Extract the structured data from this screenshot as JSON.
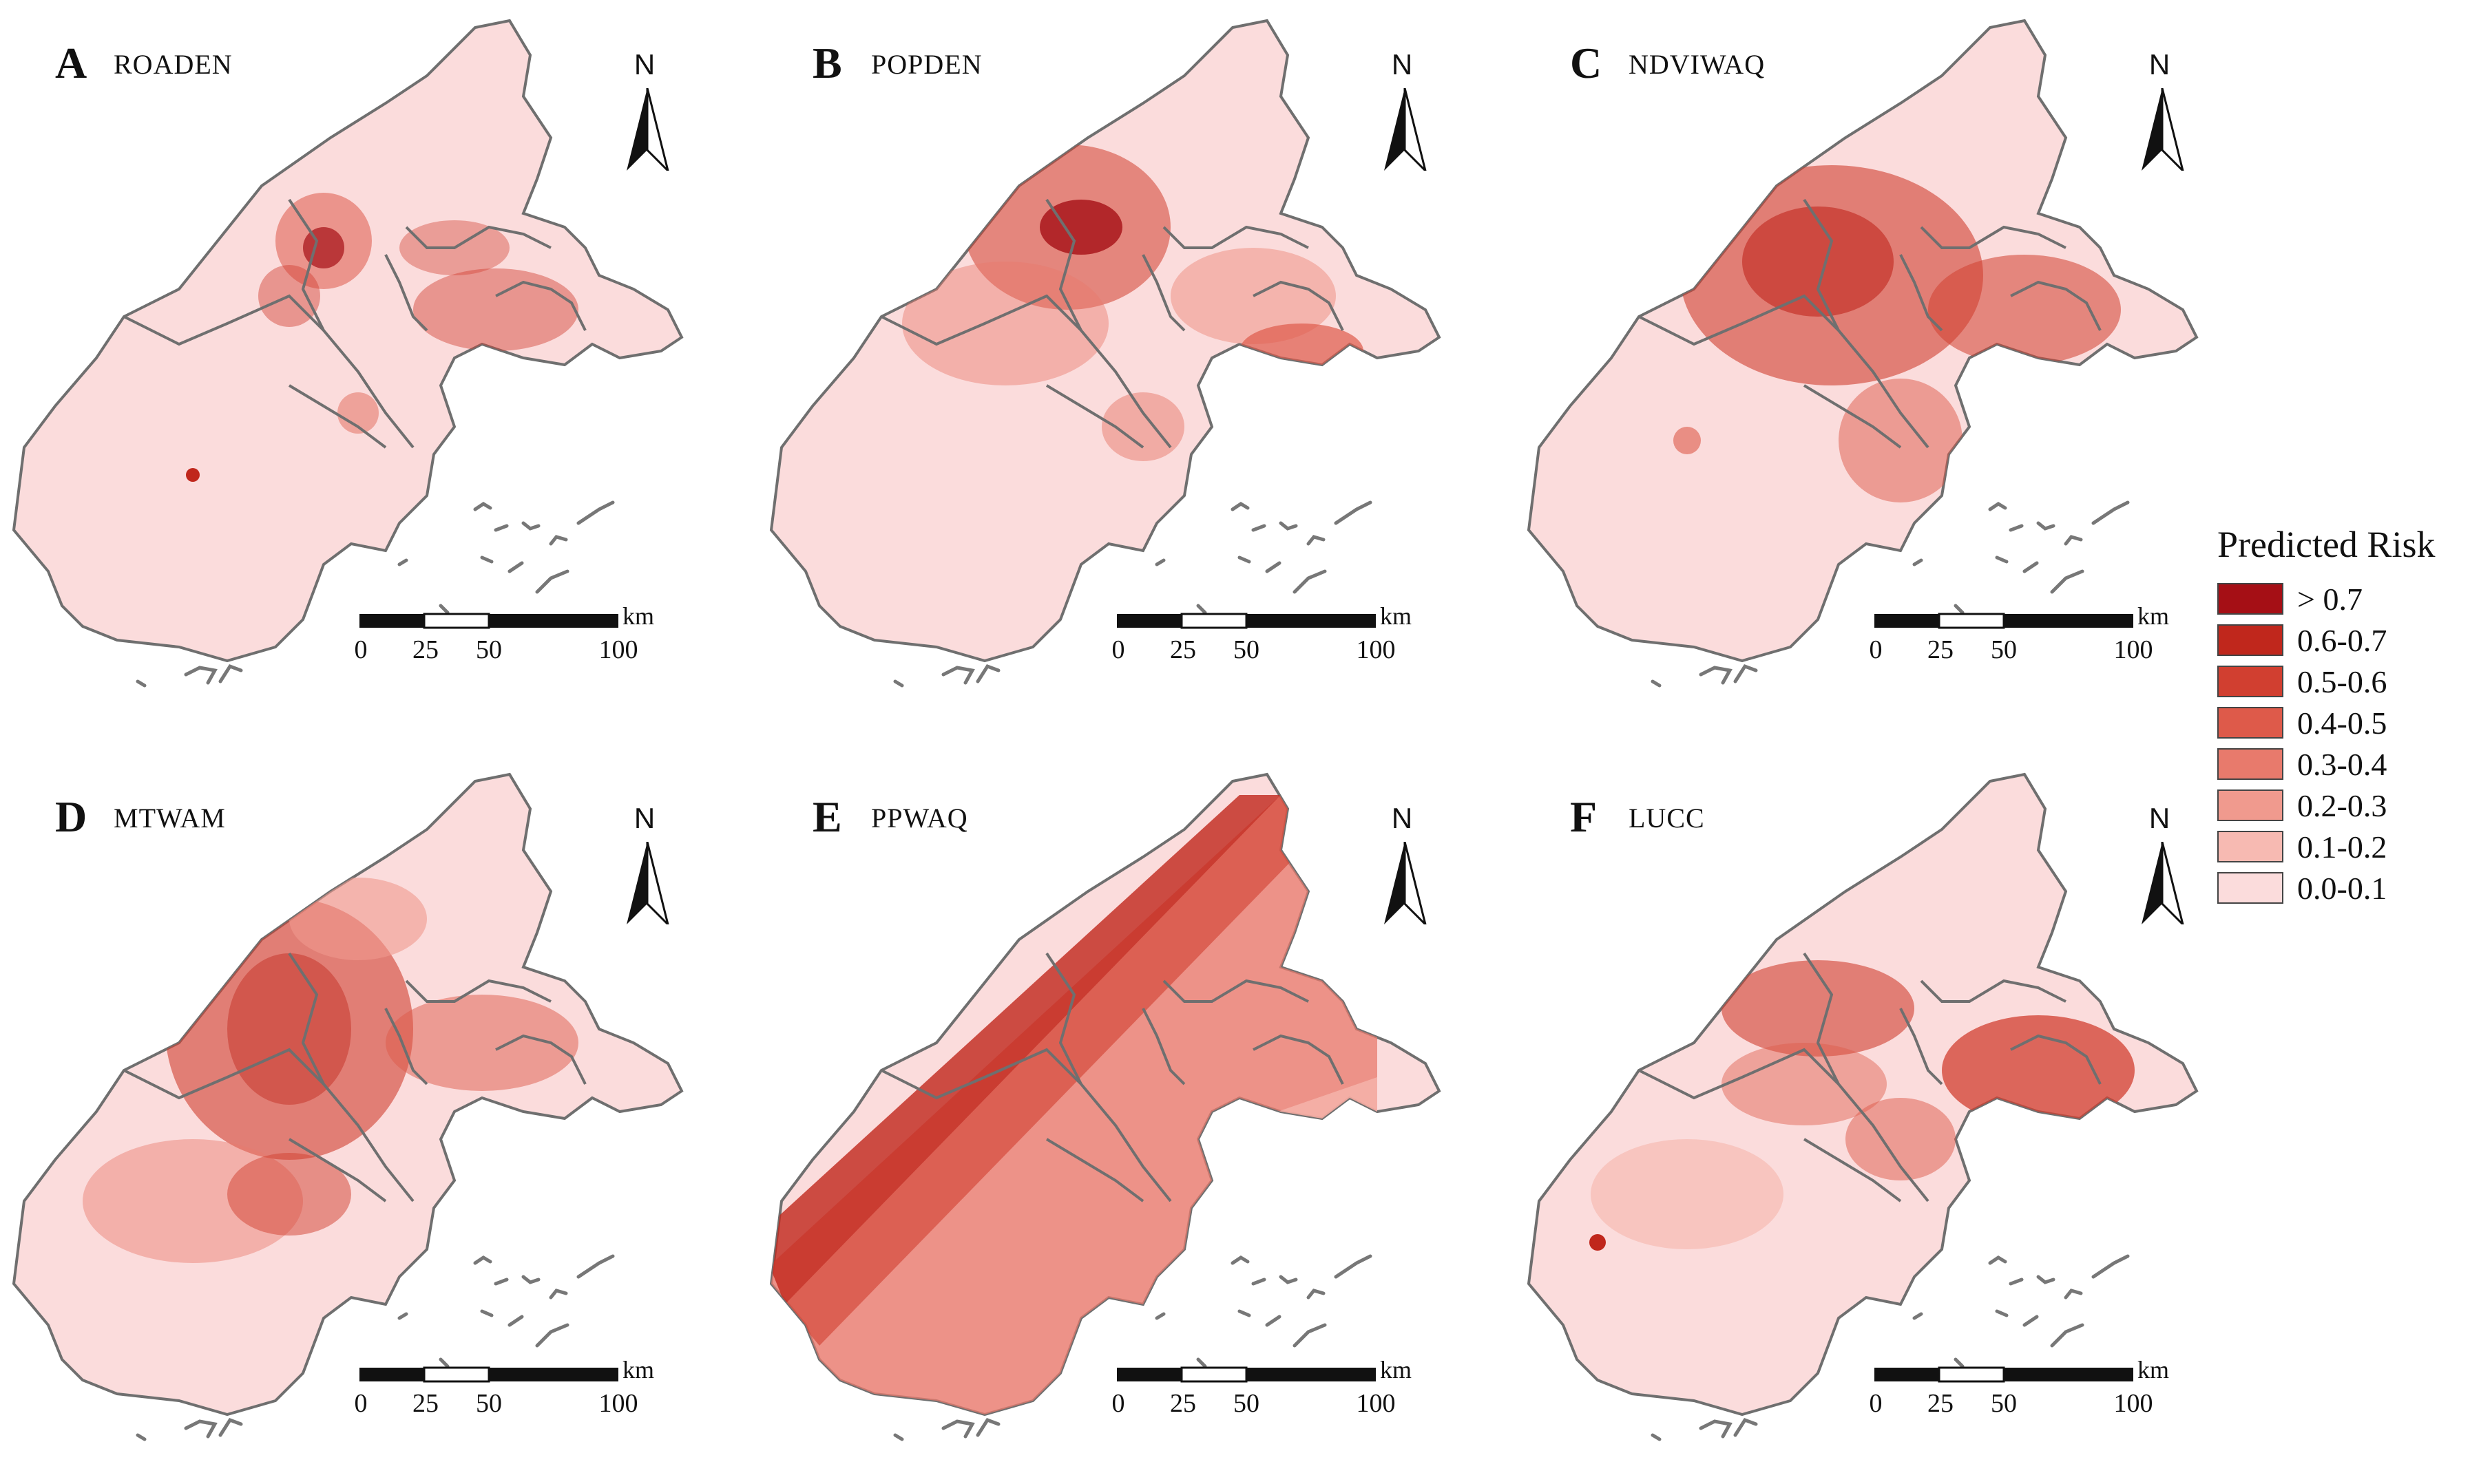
{
  "panels": [
    {
      "letter": "A",
      "title": "ROADEN"
    },
    {
      "letter": "B",
      "title": "POPDEN"
    },
    {
      "letter": "C",
      "title": "NDVIWAQ"
    },
    {
      "letter": "D",
      "title": "MTWAM"
    },
    {
      "letter": "E",
      "title": "PPWAQ"
    },
    {
      "letter": "F",
      "title": "LUCC"
    }
  ],
  "north_label": "N",
  "scale_bar": {
    "unit": "km",
    "ticks": [
      "0",
      "25",
      "50",
      "100"
    ]
  },
  "legend": {
    "title": "Predicted Risk",
    "items": [
      {
        "label": "> 0.7",
        "color": "#a50f15"
      },
      {
        "label": "0.6-0.7",
        "color": "#c0271c"
      },
      {
        "label": "0.5-0.6",
        "color": "#d13f30"
      },
      {
        "label": "0.4-0.5",
        "color": "#de5a4a"
      },
      {
        "label": "0.3-0.4",
        "color": "#e87a6c"
      },
      {
        "label": "0.2-0.3",
        "color": "#f09a8e"
      },
      {
        "label": "0.1-0.2",
        "color": "#f7bab2"
      },
      {
        "label": "0.0-0.1",
        "color": "#fbdcdc"
      }
    ]
  }
}
